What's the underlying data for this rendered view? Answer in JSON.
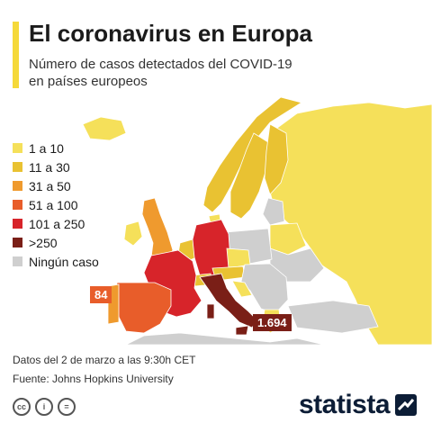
{
  "header": {
    "title": "El coronavirus en Europa",
    "subtitle_line1": "Número de casos detectados del COVID-19",
    "subtitle_line2": "en países europeos"
  },
  "colors": {
    "accent": "#f5d93a",
    "c1_10": "#f5e05a",
    "c11_30": "#e9c232",
    "c31_50": "#ef9a2e",
    "c51_100": "#e85d2a",
    "c101_250": "#d7242a",
    "c250": "#7a1f17",
    "none": "#cfcfcf"
  },
  "legend": {
    "items": [
      {
        "label": "1 a 10",
        "color": "#f5e05a"
      },
      {
        "label": "11 a 30",
        "color": "#e9c232"
      },
      {
        "label": "31 a 50",
        "color": "#ef9a2e"
      },
      {
        "label": "51 a 100",
        "color": "#e85d2a"
      },
      {
        "label": "101 a 250",
        "color": "#d7242a"
      },
      {
        "label": ">250",
        "color": "#7a1f17"
      },
      {
        "label": "Ningún caso",
        "color": "#cfcfcf"
      }
    ]
  },
  "map_labels": {
    "spain": "84",
    "italy": "1.694"
  },
  "footer": {
    "date": "Datos del 2 de marzo a las 9:30h CET",
    "source": "Fuente: Johns Hopkins University",
    "cc": [
      "cc",
      "i",
      "="
    ],
    "brand": "statista"
  }
}
